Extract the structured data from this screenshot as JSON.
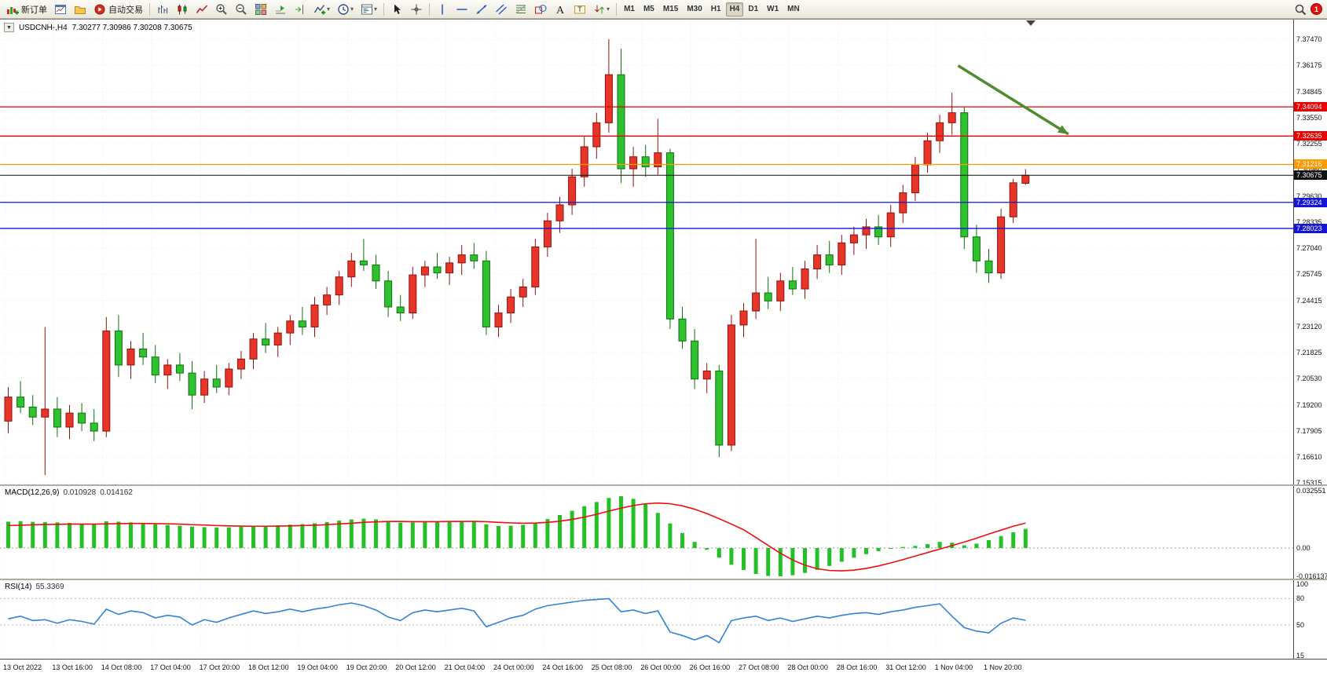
{
  "toolbar": {
    "items": [
      {
        "name": "new-order",
        "icon": "new-order-icon",
        "label": "新订单"
      },
      {
        "name": "chart-window",
        "icon": "chart-window-icon"
      },
      {
        "name": "profiles",
        "icon": "profiles-icon"
      },
      {
        "name": "auto-trading",
        "icon": "autotrading-icon",
        "label": "自动交易"
      },
      {
        "sep": true
      },
      {
        "name": "bar-chart",
        "icon": "bar-chart-icon"
      },
      {
        "name": "candlestick-chart",
        "icon": "candlestick-icon"
      },
      {
        "name": "line-chart",
        "icon": "line-chart-icon"
      },
      {
        "name": "zoom-in",
        "icon": "zoom-in-icon"
      },
      {
        "name": "zoom-out",
        "icon": "zoom-out-icon"
      },
      {
        "name": "tile-windows",
        "icon": "tile-windows-icon"
      },
      {
        "name": "auto-scroll",
        "icon": "auto-scroll-icon"
      },
      {
        "name": "chart-shift",
        "icon": "chart-shift-icon"
      },
      {
        "name": "indicators",
        "icon": "indicators-icon",
        "caret": true
      },
      {
        "name": "periods",
        "icon": "clock-icon",
        "caret": true
      },
      {
        "name": "templates",
        "icon": "template-icon",
        "caret": true
      },
      {
        "sep": true
      },
      {
        "name": "cursor",
        "icon": "cursor-icon"
      },
      {
        "name": "crosshair",
        "icon": "crosshair-icon"
      },
      {
        "sep": true
      },
      {
        "name": "vertical-line",
        "icon": "vline-icon"
      },
      {
        "name": "horizontal-line",
        "icon": "hline-icon"
      },
      {
        "name": "trendline",
        "icon": "trendline-icon"
      },
      {
        "name": "equidistant-channel",
        "icon": "channel-icon"
      },
      {
        "name": "fibonacci",
        "icon": "fibonacci-icon"
      },
      {
        "name": "shapes",
        "icon": "shapes-icon"
      },
      {
        "name": "text",
        "icon": "text-icon"
      },
      {
        "name": "text-label",
        "icon": "text-label-icon"
      },
      {
        "name": "arrow-tools",
        "icon": "arrow-tools-icon",
        "caret": true
      },
      {
        "sep": true
      }
    ],
    "timeframes": [
      "M1",
      "M5",
      "M15",
      "M30",
      "H1",
      "H4",
      "D1",
      "W1",
      "MN"
    ],
    "active_timeframe": "H4",
    "notification_count": "1"
  },
  "chart": {
    "symbol_label": "USDCNH-,H4",
    "ohlc_label": "7.30277 7.30986 7.30208 7.30675",
    "price_scale": {
      "top": 7.3747,
      "bottom": 7.15315
    },
    "price_axis_labels": [
      "7.37470",
      "7.36175",
      "7.34845",
      "7.33550",
      "7.32255",
      "7.30960",
      "7.29630",
      "7.28335",
      "7.27040",
      "7.25745",
      "7.24415",
      "7.23120",
      "7.21825",
      "7.20530",
      "7.19200",
      "7.17905",
      "7.16610",
      "7.15315"
    ],
    "hlines": [
      {
        "name": "resistance-line-1",
        "label": "7.34094",
        "price": 7.34094,
        "color": "#e60000"
      },
      {
        "name": "resistance-line-2",
        "label": "7.32635",
        "price": 7.32635,
        "color": "#e60000"
      },
      {
        "name": "pivot-line",
        "label": "7.31216",
        "price": 7.31216,
        "color": "#ff9a00"
      },
      {
        "name": "current-price-line",
        "label": "7.30675",
        "price": 7.30675,
        "color": "#111111"
      },
      {
        "name": "support-line-1",
        "label": "7.29324",
        "price": 7.29324,
        "color": "#1414d6"
      },
      {
        "name": "support-line-2",
        "label": "7.28023",
        "price": 7.28023,
        "color": "#1414d6"
      }
    ],
    "arrow_annotation": {
      "from_bar": 77.5,
      "from_price": 7.3615,
      "to_bar": 86.5,
      "to_price": 7.3273,
      "color": "#4e8c2e"
    }
  },
  "macd": {
    "title": "MACD(12,26,9)",
    "value_main": "0.010928",
    "value_signal": "0.014162",
    "axis_labels": [
      "0.032551",
      "0.00",
      "-0.016137"
    ]
  },
  "rsi": {
    "title": "RSI(14)",
    "value": "55.3369",
    "axis_labels": [
      "100",
      "80",
      "50",
      "15"
    ]
  },
  "colors": {
    "up": "#e8352a",
    "up_border": "#8f120b",
    "down": "#2fc12f",
    "down_border": "#0c730c",
    "macd_hist": "#23c126",
    "macd_signal": "#ef0d0d",
    "rsi_line": "#3183d8",
    "grid": "#ececec"
  },
  "chart_data": {
    "type": "candlestick",
    "symbol": "USDCNH",
    "timeframe": "H4",
    "time_labels": [
      "13 Oct 2022",
      "13 Oct 16:00",
      "14 Oct 08:00",
      "17 Oct 04:00",
      "17 Oct 20:00",
      "18 Oct 12:00",
      "19 Oct 04:00",
      "19 Oct 20:00",
      "20 Oct 12:00",
      "21 Oct 04:00",
      "24 Oct 00:00",
      "24 Oct 16:00",
      "25 Oct 08:00",
      "26 Oct 00:00",
      "26 Oct 16:00",
      "27 Oct 08:00",
      "28 Oct 00:00",
      "28 Oct 16:00",
      "31 Oct 12:00",
      "1 Nov 04:00",
      "1 Nov 20:00"
    ],
    "candles": [
      [
        7.184,
        7.201,
        7.178,
        7.196
      ],
      [
        7.196,
        7.204,
        7.188,
        7.191
      ],
      [
        7.191,
        7.197,
        7.182,
        7.186
      ],
      [
        7.186,
        7.231,
        7.157,
        7.19
      ],
      [
        7.19,
        7.196,
        7.176,
        7.181
      ],
      [
        7.181,
        7.192,
        7.175,
        7.188
      ],
      [
        7.188,
        7.193,
        7.179,
        7.183
      ],
      [
        7.183,
        7.19,
        7.174,
        7.179
      ],
      [
        7.179,
        7.236,
        7.176,
        7.229
      ],
      [
        7.229,
        7.237,
        7.206,
        7.212
      ],
      [
        7.212,
        7.224,
        7.205,
        7.22
      ],
      [
        7.22,
        7.228,
        7.212,
        7.216
      ],
      [
        7.216,
        7.222,
        7.203,
        7.207
      ],
      [
        7.207,
        7.215,
        7.2,
        7.212
      ],
      [
        7.212,
        7.218,
        7.204,
        7.208
      ],
      [
        7.208,
        7.214,
        7.19,
        7.197
      ],
      [
        7.197,
        7.209,
        7.193,
        7.205
      ],
      [
        7.205,
        7.212,
        7.198,
        7.201
      ],
      [
        7.201,
        7.213,
        7.197,
        7.21
      ],
      [
        7.21,
        7.219,
        7.205,
        7.215
      ],
      [
        7.215,
        7.228,
        7.21,
        7.225
      ],
      [
        7.225,
        7.233,
        7.218,
        7.222
      ],
      [
        7.222,
        7.231,
        7.216,
        7.228
      ],
      [
        7.228,
        7.237,
        7.222,
        7.234
      ],
      [
        7.234,
        7.241,
        7.227,
        7.231
      ],
      [
        7.231,
        7.246,
        7.226,
        7.242
      ],
      [
        7.242,
        7.251,
        7.237,
        7.247
      ],
      [
        7.247,
        7.259,
        7.242,
        7.256
      ],
      [
        7.256,
        7.268,
        7.251,
        7.264
      ],
      [
        7.264,
        7.275,
        7.259,
        7.262
      ],
      [
        7.262,
        7.267,
        7.25,
        7.254
      ],
      [
        7.254,
        7.259,
        7.236,
        7.241
      ],
      [
        7.241,
        7.247,
        7.234,
        7.238
      ],
      [
        7.238,
        7.261,
        7.235,
        7.257
      ],
      [
        7.257,
        7.264,
        7.251,
        7.261
      ],
      [
        7.261,
        7.268,
        7.255,
        7.258
      ],
      [
        7.258,
        7.266,
        7.252,
        7.263
      ],
      [
        7.263,
        7.272,
        7.257,
        7.267
      ],
      [
        7.267,
        7.273,
        7.26,
        7.264
      ],
      [
        7.264,
        7.269,
        7.227,
        7.231
      ],
      [
        7.231,
        7.242,
        7.226,
        7.238
      ],
      [
        7.238,
        7.25,
        7.233,
        7.246
      ],
      [
        7.246,
        7.255,
        7.241,
        7.251
      ],
      [
        7.251,
        7.275,
        7.247,
        7.271
      ],
      [
        7.271,
        7.288,
        7.266,
        7.284
      ],
      [
        7.284,
        7.296,
        7.278,
        7.292
      ],
      [
        7.292,
        7.31,
        7.287,
        7.306
      ],
      [
        7.306,
        7.326,
        7.301,
        7.321
      ],
      [
        7.321,
        7.338,
        7.315,
        7.333
      ],
      [
        7.333,
        7.3747,
        7.328,
        7.357
      ],
      [
        7.357,
        7.37,
        7.303,
        7.31
      ],
      [
        7.31,
        7.321,
        7.301,
        7.316
      ],
      [
        7.316,
        7.322,
        7.306,
        7.311
      ],
      [
        7.311,
        7.335,
        7.307,
        7.318
      ],
      [
        7.318,
        7.32,
        7.23,
        7.235
      ],
      [
        7.235,
        7.241,
        7.22,
        7.224
      ],
      [
        7.224,
        7.23,
        7.2,
        7.205
      ],
      [
        7.205,
        7.213,
        7.198,
        7.209
      ],
      [
        7.209,
        7.212,
        7.166,
        7.172
      ],
      [
        7.172,
        7.237,
        7.169,
        7.232
      ],
      [
        7.232,
        7.243,
        7.226,
        7.239
      ],
      [
        7.239,
        7.275,
        7.235,
        7.248
      ],
      [
        7.248,
        7.256,
        7.24,
        7.244
      ],
      [
        7.244,
        7.258,
        7.239,
        7.254
      ],
      [
        7.254,
        7.261,
        7.247,
        7.25
      ],
      [
        7.25,
        7.264,
        7.245,
        7.26
      ],
      [
        7.26,
        7.272,
        7.255,
        7.267
      ],
      [
        7.267,
        7.274,
        7.258,
        7.262
      ],
      [
        7.262,
        7.277,
        7.257,
        7.273
      ],
      [
        7.273,
        7.281,
        7.267,
        7.277
      ],
      [
        7.277,
        7.285,
        7.27,
        7.281
      ],
      [
        7.281,
        7.287,
        7.272,
        7.276
      ],
      [
        7.276,
        7.292,
        7.271,
        7.288
      ],
      [
        7.288,
        7.302,
        7.283,
        7.298
      ],
      [
        7.298,
        7.316,
        7.294,
        7.312
      ],
      [
        7.312,
        7.328,
        7.308,
        7.324
      ],
      [
        7.324,
        7.337,
        7.318,
        7.333
      ],
      [
        7.333,
        7.348,
        7.327,
        7.338
      ],
      [
        7.338,
        7.341,
        7.27,
        7.276
      ],
      [
        7.276,
        7.282,
        7.258,
        7.264
      ],
      [
        7.264,
        7.27,
        7.253,
        7.258
      ],
      [
        7.258,
        7.29,
        7.255,
        7.286
      ],
      [
        7.286,
        7.305,
        7.283,
        7.303
      ],
      [
        7.30277,
        7.30986,
        7.30208,
        7.30675
      ]
    ],
    "macd_histogram": [
      0.015,
      0.0153,
      0.0149,
      0.0147,
      0.0146,
      0.0143,
      0.0139,
      0.0136,
      0.0152,
      0.015,
      0.0146,
      0.0141,
      0.0135,
      0.0131,
      0.0127,
      0.0122,
      0.0119,
      0.0117,
      0.0118,
      0.0121,
      0.0125,
      0.0127,
      0.0129,
      0.0133,
      0.0136,
      0.0141,
      0.0148,
      0.0156,
      0.0163,
      0.0167,
      0.0163,
      0.0153,
      0.0145,
      0.0146,
      0.015,
      0.0152,
      0.0153,
      0.0154,
      0.0152,
      0.0135,
      0.0126,
      0.0127,
      0.0132,
      0.0145,
      0.0165,
      0.0188,
      0.0212,
      0.0238,
      0.0262,
      0.0285,
      0.0295,
      0.028,
      0.025,
      0.02,
      0.014,
      0.0085,
      0.0035,
      -0.001,
      -0.0055,
      -0.0095,
      -0.0125,
      -0.0148,
      -0.0159,
      -0.0161,
      -0.0155,
      -0.0142,
      -0.0124,
      -0.0102,
      -0.0078,
      -0.0055,
      -0.0035,
      -0.0018,
      -0.0005,
      0.0006,
      0.0012,
      0.0022,
      0.0035,
      0.003,
      0.0015,
      0.0025,
      0.0045,
      0.0068,
      0.009,
      0.0109
    ],
    "macd_signal": [
      0.0128,
      0.013,
      0.0132,
      0.0134,
      0.0135,
      0.0136,
      0.0136,
      0.0136,
      0.0137,
      0.0139,
      0.014,
      0.014,
      0.0139,
      0.0138,
      0.0136,
      0.0133,
      0.0131,
      0.0128,
      0.0126,
      0.0125,
      0.0124,
      0.0124,
      0.0125,
      0.0126,
      0.0128,
      0.013,
      0.0133,
      0.0137,
      0.0141,
      0.0146,
      0.0149,
      0.0151,
      0.0151,
      0.015,
      0.015,
      0.015,
      0.0151,
      0.0151,
      0.0152,
      0.015,
      0.0146,
      0.0143,
      0.0141,
      0.0142,
      0.0146,
      0.0153,
      0.0163,
      0.0176,
      0.0192,
      0.021,
      0.0227,
      0.0242,
      0.0252,
      0.0256,
      0.0252,
      0.024,
      0.0221,
      0.0196,
      0.0167,
      0.0136,
      0.0104,
      0.006,
      0.0015,
      -0.003,
      -0.0068,
      -0.0098,
      -0.0118,
      -0.0128,
      -0.013,
      -0.0126,
      -0.0116,
      -0.0102,
      -0.0085,
      -0.0066,
      -0.0046,
      -0.0026,
      -0.0006,
      0.0014,
      0.0034,
      0.0056,
      0.008,
      0.0102,
      0.0124,
      0.0142
    ],
    "rsi_values": [
      57,
      60,
      55,
      56,
      52,
      56,
      54,
      51,
      68,
      62,
      66,
      64,
      58,
      61,
      59,
      50,
      56,
      53,
      58,
      62,
      66,
      63,
      65,
      68,
      65,
      68,
      70,
      73,
      75,
      72,
      67,
      59,
      55,
      64,
      67,
      65,
      67,
      69,
      66,
      48,
      53,
      58,
      61,
      68,
      72,
      74,
      76,
      78,
      79,
      80,
      65,
      67,
      63,
      66,
      42,
      38,
      33,
      38,
      30,
      55,
      58,
      60,
      55,
      58,
      54,
      57,
      60,
      58,
      61,
      63,
      64,
      62,
      65,
      67,
      70,
      72,
      74,
      60,
      47,
      43,
      41,
      52,
      58,
      55.34
    ]
  }
}
